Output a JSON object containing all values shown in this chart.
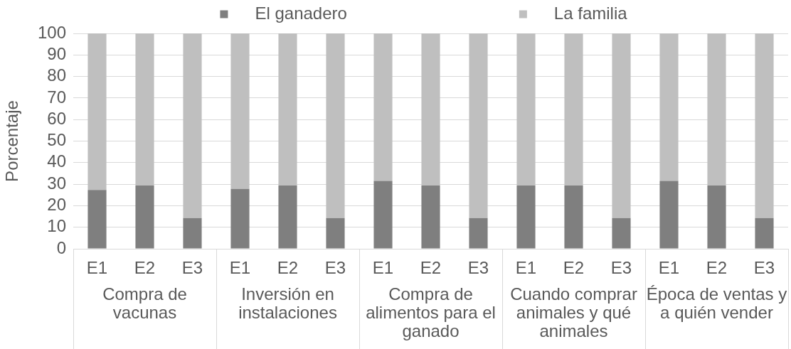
{
  "chart_data": {
    "type": "bar",
    "stacked": true,
    "ylabel": "Porcentaje",
    "categories": [
      "E1",
      "E2",
      "E3",
      "E1",
      "E2",
      "E3",
      "E1",
      "E2",
      "E3",
      "E1",
      "E2",
      "E3",
      "E1",
      "E2",
      "E3"
    ],
    "series": [
      {
        "name": "El ganadero",
        "color": "#7f7f7f",
        "values": [
          27.3,
          29.4,
          14.3,
          27.8,
          29.4,
          14.3,
          31.5,
          29.4,
          14.3,
          29.4,
          29.4,
          14.3,
          31.5,
          29.4,
          14.3
        ]
      },
      {
        "name": "La familia",
        "color": "#bfbfbf",
        "values": [
          72.7,
          70.6,
          85.7,
          72.2,
          70.6,
          85.7,
          68.5,
          70.6,
          85.7,
          70.6,
          70.6,
          85.7,
          68.5,
          70.6,
          85.7
        ]
      }
    ],
    "ylim": [
      0,
      100
    ],
    "yticks": [
      0,
      10,
      20,
      30,
      40,
      50,
      60,
      70,
      80,
      90,
      100
    ],
    "grid": "y",
    "legend": "top",
    "annotations": [
      "Compra de vacunas",
      "Inversión en instalaciones",
      "Compra de alimentos para el ganado",
      "Cuando comprar animales y qué animales",
      "Época de ventas y a quién vender"
    ]
  }
}
